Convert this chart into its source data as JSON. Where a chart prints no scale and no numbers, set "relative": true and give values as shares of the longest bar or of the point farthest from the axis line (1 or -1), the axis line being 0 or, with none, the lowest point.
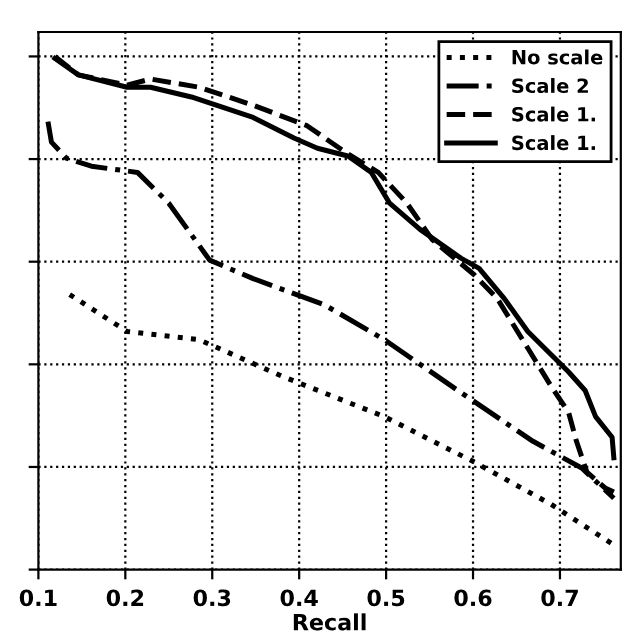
{
  "chart_data": {
    "type": "line",
    "xlabel": "Recall",
    "relative": true,
    "xlim": [
      0.1,
      0.77
    ],
    "xticks": [
      0.1,
      0.2,
      0.3,
      0.4,
      0.5,
      0.6,
      0.7
    ],
    "grid": true,
    "legend": "top right",
    "tick_labels": "x",
    "series": [
      {
        "name": "No scale",
        "color": "#000000",
        "line_style": "dotted",
        "x": [
          0.136,
          0.202,
          0.285,
          0.38,
          0.498,
          0.601,
          0.69,
          0.762
        ],
        "values": [
          0.536,
          0.464,
          0.448,
          0.377,
          0.298,
          0.21,
          0.127,
          0.048
        ]
      },
      {
        "name": "Scale 2",
        "color": "#000000",
        "line_style": "dashdot",
        "x": [
          0.111,
          0.115,
          0.132,
          0.161,
          0.214,
          0.25,
          0.297,
          0.347,
          0.429,
          0.498,
          0.586,
          0.669,
          0.725,
          0.762
        ],
        "values": [
          0.873,
          0.833,
          0.802,
          0.786,
          0.774,
          0.714,
          0.603,
          0.567,
          0.516,
          0.448,
          0.345,
          0.25,
          0.198,
          0.139
        ]
      },
      {
        "name": "Scale 1.",
        "color": "#000000",
        "line_style": "dashed",
        "x": [
          0.119,
          0.146,
          0.202,
          0.229,
          0.285,
          0.347,
          0.409,
          0.456,
          0.491,
          0.524,
          0.553,
          0.601,
          0.628,
          0.657,
          0.69,
          0.71,
          0.719,
          0.731,
          0.752,
          0.762
        ],
        "values": [
          1.0,
          0.964,
          0.944,
          0.956,
          0.94,
          0.905,
          0.865,
          0.81,
          0.774,
          0.714,
          0.643,
          0.575,
          0.528,
          0.448,
          0.357,
          0.306,
          0.25,
          0.19,
          0.159,
          0.151
        ]
      },
      {
        "name": "Scale 1.",
        "color": "#000000",
        "line_style": "solid",
        "x": [
          0.119,
          0.146,
          0.202,
          0.229,
          0.276,
          0.347,
          0.394,
          0.421,
          0.456,
          0.483,
          0.504,
          0.539,
          0.586,
          0.607,
          0.636,
          0.663,
          0.71,
          0.729,
          0.741,
          0.76,
          0.762
        ],
        "values": [
          0.996,
          0.964,
          0.94,
          0.94,
          0.921,
          0.881,
          0.841,
          0.821,
          0.806,
          0.774,
          0.714,
          0.663,
          0.607,
          0.587,
          0.528,
          0.464,
          0.385,
          0.349,
          0.298,
          0.258,
          0.218
        ]
      }
    ]
  }
}
